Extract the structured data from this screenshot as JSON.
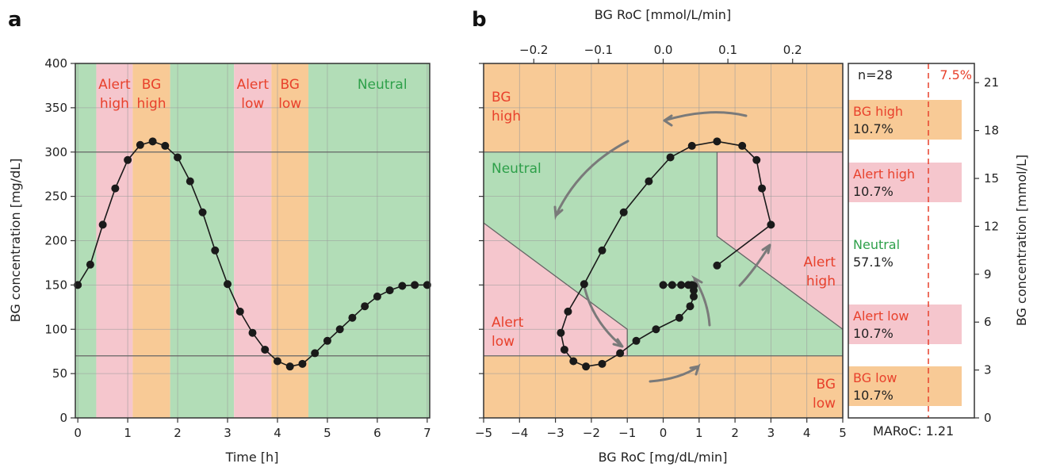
{
  "panel_a_label": "a",
  "panel_b_label": "b",
  "colors": {
    "green": "#b2ddb7",
    "pink": "#f5c6cd",
    "orange": "#f8ca96",
    "red_text": "#e8412c",
    "green_text": "#2ea04a"
  },
  "chart_data": [
    {
      "type": "line",
      "panel": "a",
      "xlabel": "Time [h]",
      "ylabel": "BG concentration [mg/dL]",
      "xlim": [
        -0.05,
        7.05
      ],
      "ylim": [
        0,
        400
      ],
      "xticks": [
        "0",
        "1",
        "2",
        "3",
        "4",
        "5",
        "6",
        "7"
      ],
      "yticks": [
        "0",
        "50",
        "100",
        "150",
        "200",
        "250",
        "300",
        "350",
        "400"
      ],
      "thresholds": [
        70,
        300
      ],
      "bands": [
        {
          "from": 0.0,
          "to": 0.37,
          "region": "neutral"
        },
        {
          "from": 0.37,
          "to": 1.1,
          "region": "alert_high",
          "label": [
            "Alert",
            "high"
          ]
        },
        {
          "from": 1.1,
          "to": 1.85,
          "region": "bg_high",
          "label": [
            "BG",
            "high"
          ]
        },
        {
          "from": 1.85,
          "to": 3.13,
          "region": "neutral"
        },
        {
          "from": 3.13,
          "to": 3.88,
          "region": "alert_low",
          "label": [
            "Alert",
            "low"
          ]
        },
        {
          "from": 3.88,
          "to": 4.62,
          "region": "bg_low",
          "label": [
            "BG",
            "low"
          ]
        },
        {
          "from": 4.62,
          "to": 7.05,
          "region": "neutral",
          "label": [
            "Neutral"
          ]
        }
      ],
      "x": [
        0.0,
        0.25,
        0.5,
        0.75,
        1.0,
        1.25,
        1.5,
        1.75,
        2.0,
        2.25,
        2.5,
        2.75,
        3.0,
        3.25,
        3.5,
        3.75,
        4.0,
        4.25,
        4.5,
        4.75,
        5.0,
        5.25,
        5.5,
        5.75,
        6.0,
        6.25,
        6.5,
        6.75,
        7.0
      ],
      "y": [
        150,
        173,
        218,
        259,
        291,
        308,
        312,
        307,
        294,
        267,
        232,
        189,
        151,
        120,
        96,
        77,
        64,
        58,
        61,
        73,
        87,
        100,
        113,
        126,
        137,
        144,
        149,
        150,
        150
      ]
    },
    {
      "type": "scatter",
      "panel": "b",
      "xlabel": "BG RoC [mg/dL/min]",
      "ylabel_right": "BG concentration [mmol/L]",
      "xlabel_top": "BG RoC [mmol/L/min]",
      "xlim": [
        -5,
        5
      ],
      "ylim": [
        0,
        400
      ],
      "xticks": [
        "−5",
        "−4",
        "−3",
        "−2",
        "−1",
        "0",
        "1",
        "2",
        "3",
        "4",
        "5"
      ],
      "top_ticks": [
        {
          "value": -0.2,
          "label": "−0.2"
        },
        {
          "value": -0.1,
          "label": "−0.1"
        },
        {
          "value": 0.0,
          "label": "0.0"
        },
        {
          "value": 0.1,
          "label": "0.1"
        },
        {
          "value": 0.2,
          "label": "0.2"
        }
      ],
      "right_ticks": [
        {
          "value": 0,
          "label": "0"
        },
        {
          "value": 3,
          "label": "3"
        },
        {
          "value": 6,
          "label": "6"
        },
        {
          "value": 9,
          "label": "9"
        },
        {
          "value": 12,
          "label": "12"
        },
        {
          "value": 15,
          "label": "15"
        },
        {
          "value": 18,
          "label": "18"
        },
        {
          "value": 21,
          "label": "21"
        }
      ],
      "region_labels": {
        "bg_high": [
          "BG",
          "high"
        ],
        "neutral": [
          "Neutral"
        ],
        "alert_high": [
          "Alert",
          "high"
        ],
        "alert_low": [
          "Alert",
          "low"
        ],
        "bg_low": [
          "BG",
          "low"
        ]
      },
      "x": [
        1.5,
        3.0,
        2.75,
        2.6,
        2.2,
        1.5,
        0.8,
        0.2,
        -0.4,
        -1.1,
        -1.7,
        -2.2,
        -2.65,
        -2.85,
        -2.75,
        -2.5,
        -2.15,
        -1.7,
        -1.2,
        -0.75,
        -0.2,
        0.45,
        0.75,
        0.85,
        0.85,
        0.85,
        0.8,
        0.7,
        0.5,
        0.25,
        0.0
      ],
      "y": [
        172,
        218,
        259,
        291,
        307,
        312,
        307,
        294,
        267,
        232,
        189,
        151,
        120,
        96,
        77,
        64,
        58,
        61,
        73,
        87,
        100,
        113,
        126,
        137,
        144,
        149,
        150,
        150,
        150,
        150,
        150
      ]
    },
    {
      "type": "bar",
      "panel": "summary",
      "n_label": "n=28",
      "threshold_label": "7.5%",
      "threshold": 7.5,
      "maroc_label": "MARoC: 1.21",
      "categories": [
        "BG high",
        "Alert high",
        "Neutral",
        "Alert low",
        "BG low"
      ],
      "percent_labels": [
        "10.7%",
        "10.7%",
        "57.1%",
        "10.7%",
        "10.7%"
      ],
      "values": [
        10.7,
        10.7,
        57.1,
        10.7,
        10.7
      ]
    }
  ]
}
